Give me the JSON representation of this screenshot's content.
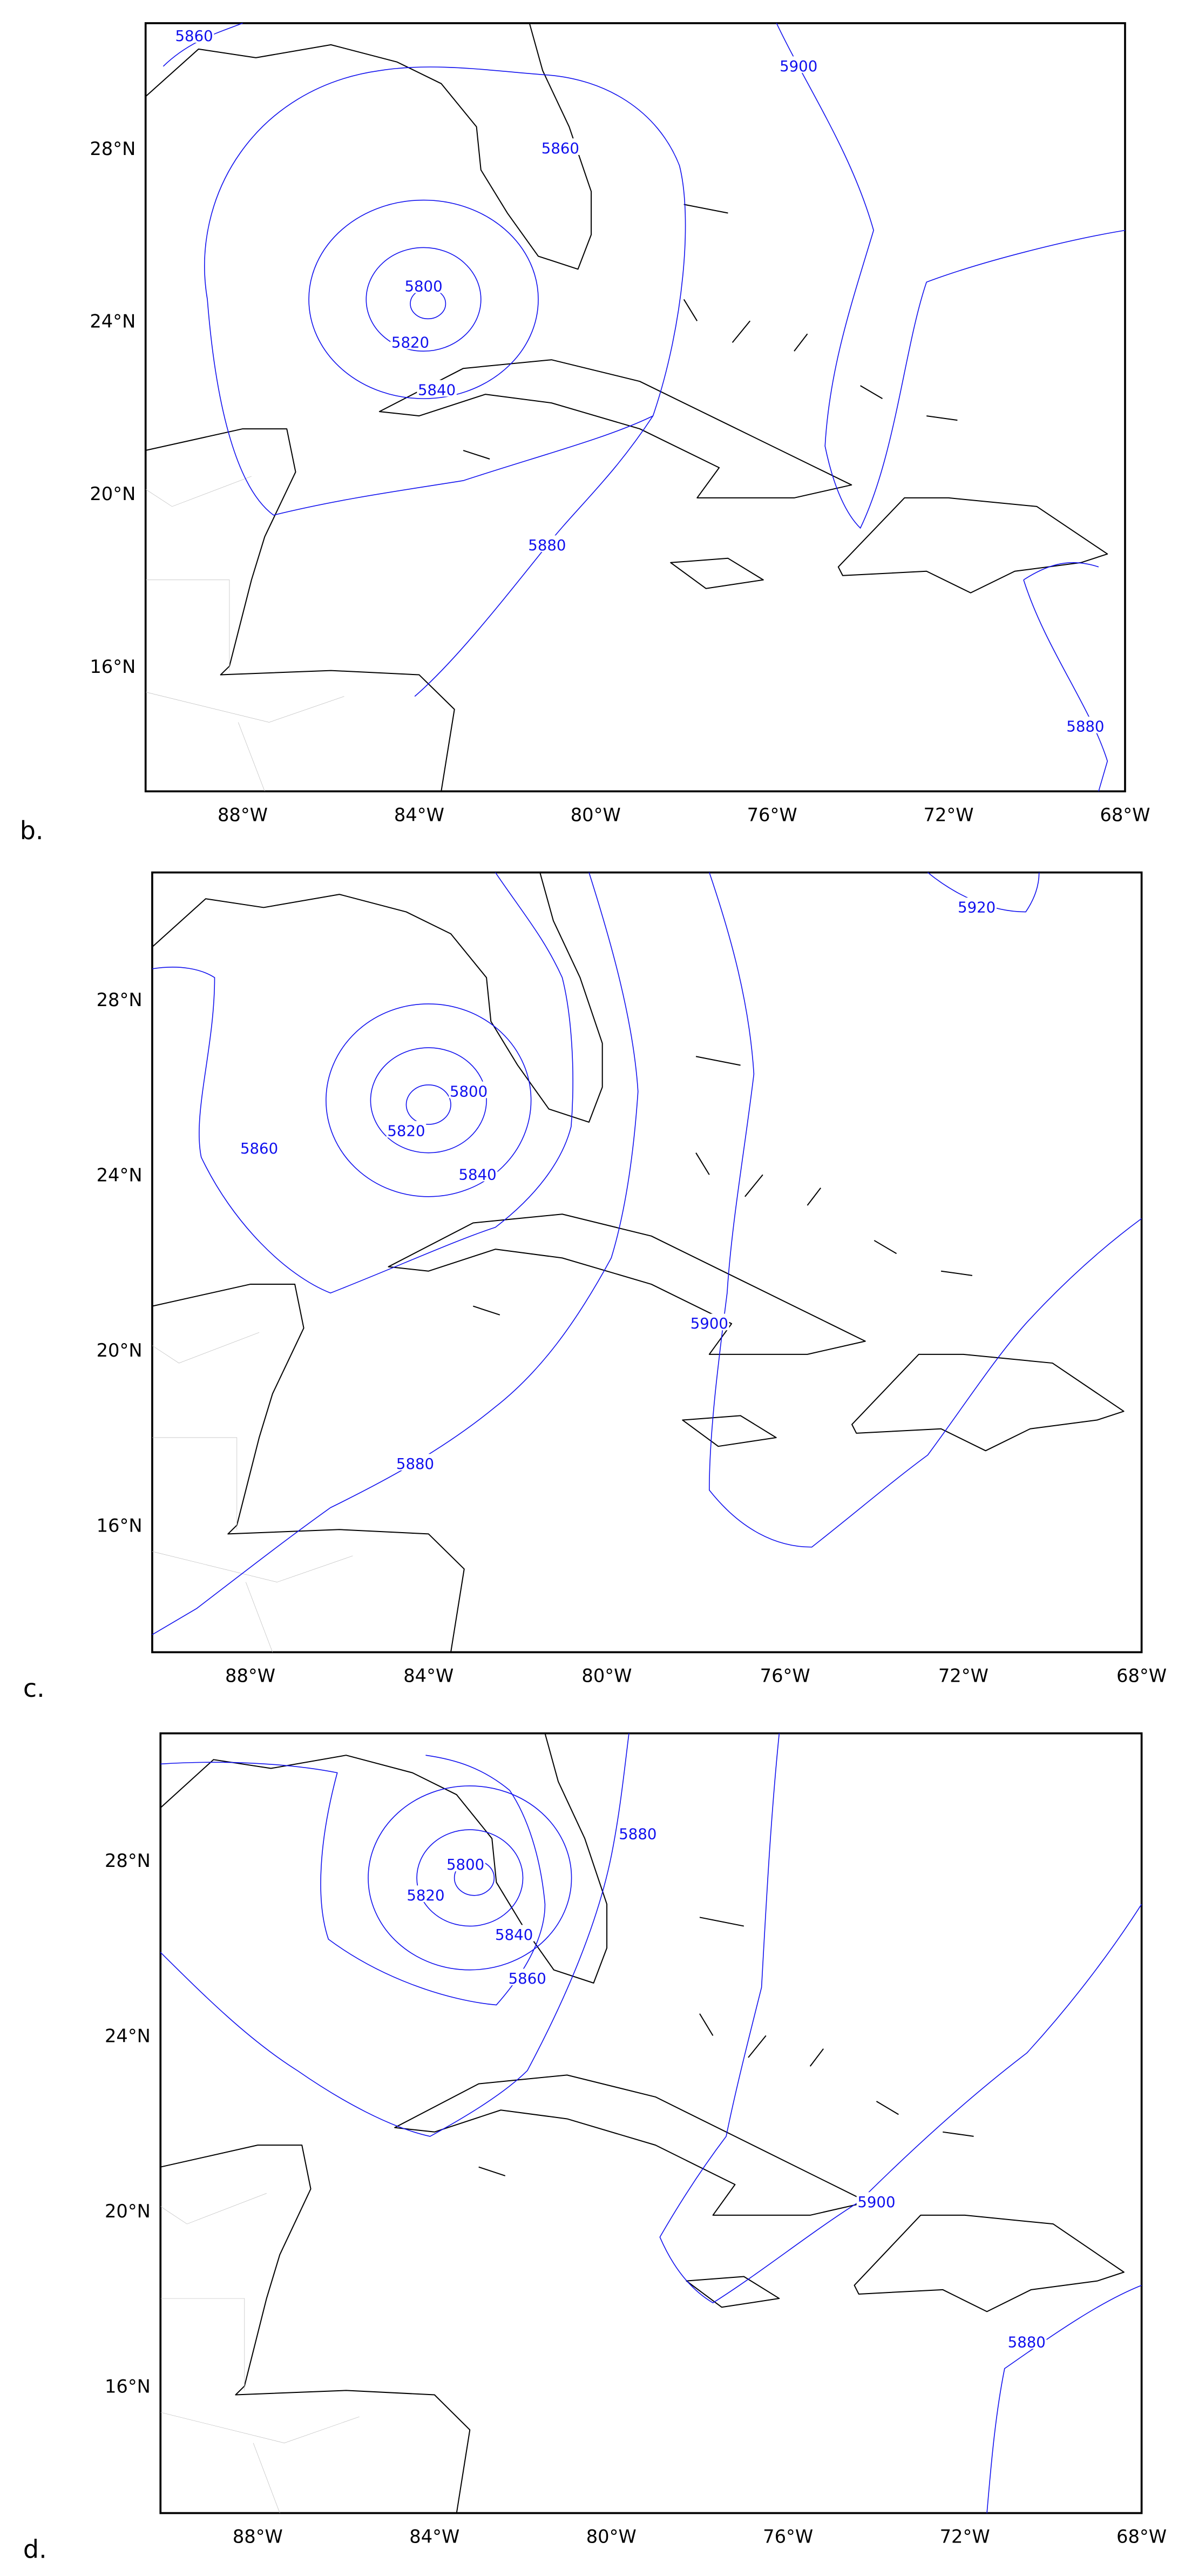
{
  "panels": [
    {
      "label": "b.",
      "x_ticks": [
        "88°W",
        "84°W",
        "80°W",
        "76°W",
        "72°W",
        "68°W"
      ],
      "y_ticks": [
        "28°N",
        "24°N",
        "20°N",
        "16°N"
      ],
      "contour_labels": [
        "5860",
        "5860",
        "5900",
        "5800",
        "5820",
        "5840",
        "5880",
        "5880"
      ]
    },
    {
      "label": "c.",
      "x_ticks": [
        "88°W",
        "84°W",
        "80°W",
        "76°W",
        "72°W",
        "68°W"
      ],
      "y_ticks": [
        "28°N",
        "24°N",
        "20°N",
        "16°N"
      ],
      "contour_labels": [
        "5920",
        "5860",
        "5800",
        "5820",
        "5840",
        "5900",
        "5880"
      ]
    },
    {
      "label": "d.",
      "x_ticks": [
        "88°W",
        "84°W",
        "80°W",
        "76°W",
        "72°W",
        "68°W"
      ],
      "y_ticks": [
        "28°N",
        "24°N",
        "20°N",
        "16°N"
      ],
      "contour_labels": [
        "5880",
        "5800",
        "5820",
        "5840",
        "5860",
        "5900",
        "5880"
      ]
    }
  ]
}
